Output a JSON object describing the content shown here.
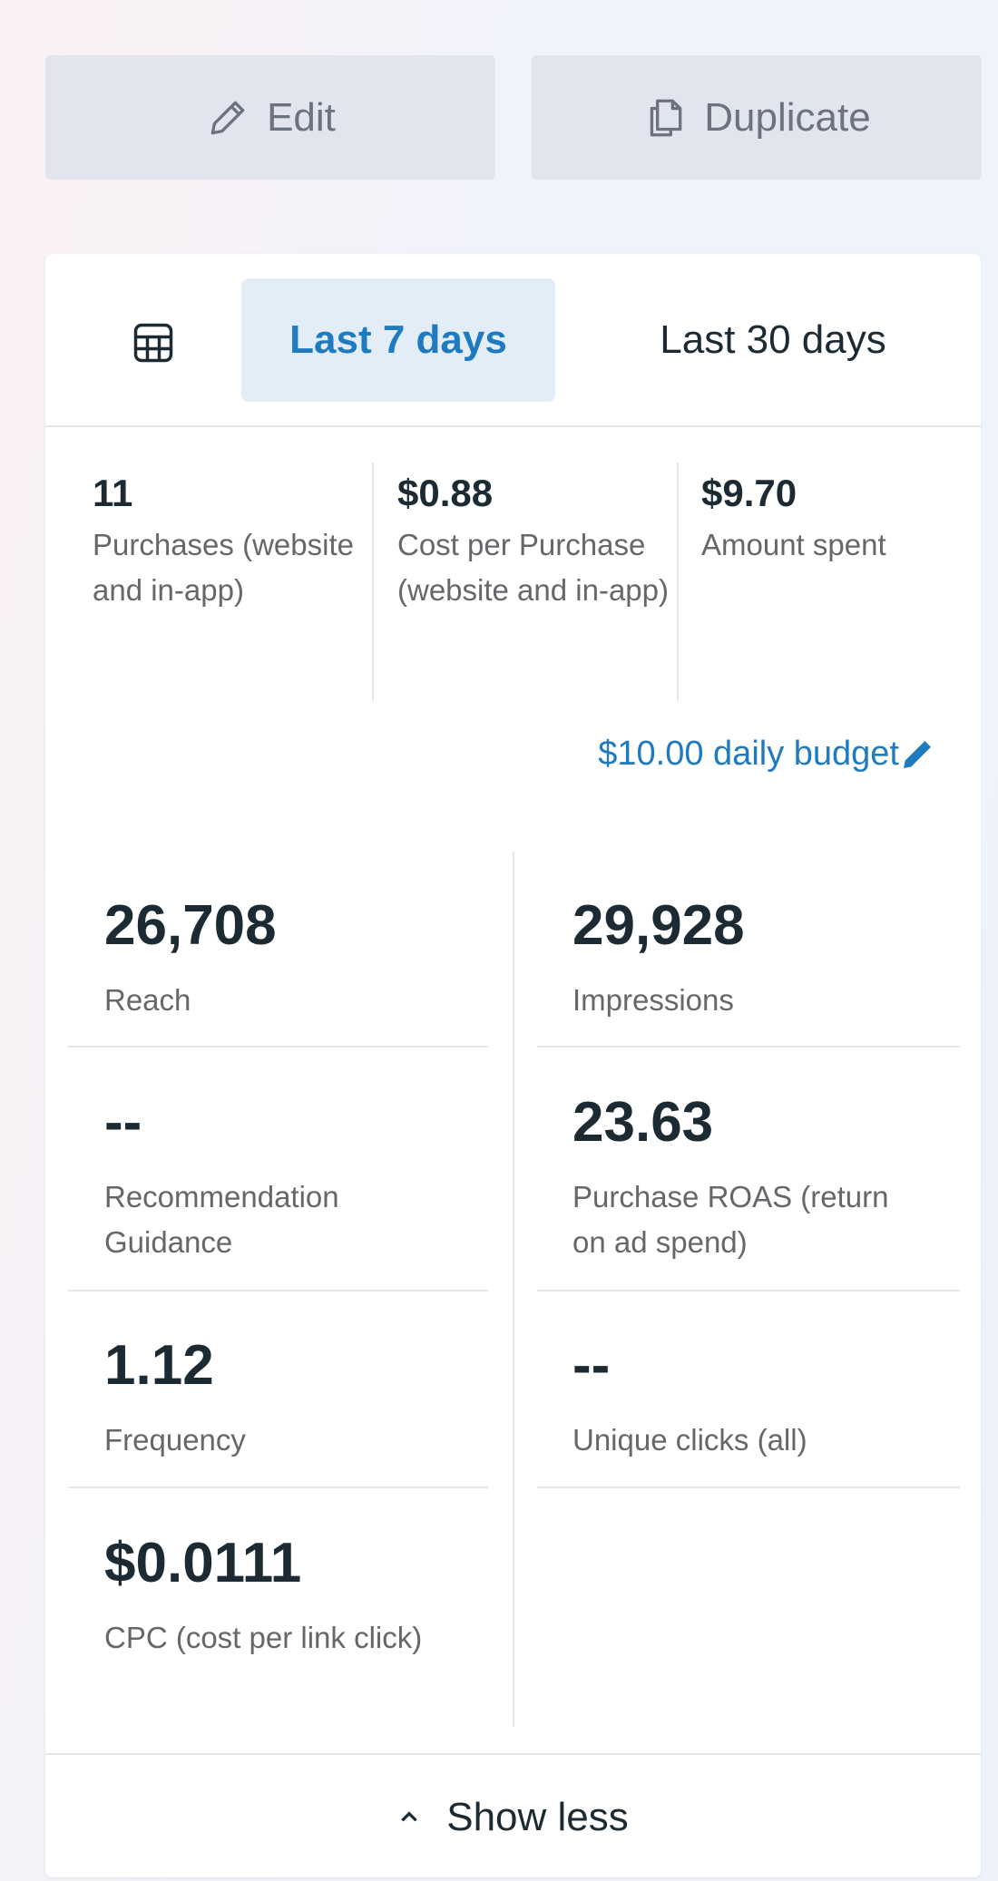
{
  "buttons": [
    {
      "label": "Edit"
    },
    {
      "label": "Duplicate"
    }
  ],
  "tabs": [
    {
      "label": "Last 7 days",
      "selected": true
    },
    {
      "label": "Last 30 days",
      "selected": false
    }
  ],
  "summary": [
    {
      "value": "11",
      "label": "Purchases (website and in-app)"
    },
    {
      "value": "$0.88",
      "label": "Cost per Purchase (website and in-app)"
    },
    {
      "value": "$9.70",
      "label": "Amount spent"
    }
  ],
  "budget": "$10.00 daily budget",
  "metrics": [
    {
      "value": "26,708",
      "label": "Reach"
    },
    {
      "value": "29,928",
      "label": "Impressions"
    },
    {
      "value": "--",
      "label": "Recommendation Guidance"
    },
    {
      "value": "23.63",
      "label": "Purchase ROAS (return on ad spend)"
    },
    {
      "value": "1.12",
      "label": "Frequency"
    },
    {
      "value": "--",
      "label": "Unique clicks (all)"
    },
    {
      "value": "$0.0111",
      "label": "CPC (cost per link click)"
    }
  ],
  "footer": "Show less"
}
